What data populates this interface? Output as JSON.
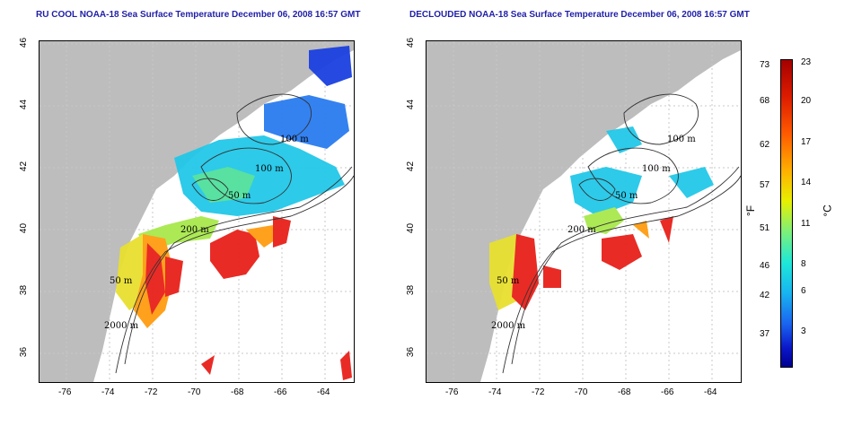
{
  "titles": {
    "left": "RU COOL NOAA-18 Sea Surface Temperature December 06, 2008 16:57 GMT",
    "right": "DECLOUDED NOAA-18 Sea Surface Temperature December 06, 2008 16:57 GMT"
  },
  "x_ticks": [
    "-76",
    "-74",
    "-72",
    "-70",
    "-68",
    "-66",
    "-64"
  ],
  "y_ticks": [
    "46",
    "44",
    "42",
    "40",
    "38",
    "36"
  ],
  "contour_labels": {
    "left": [
      "100 m",
      "100 m",
      "50 m",
      "200 m",
      "50 m",
      "2000 m"
    ],
    "right": [
      "100 m",
      "100 m",
      "50 m",
      "200 m",
      "50 m",
      "2000 m"
    ]
  },
  "colorbar": {
    "fahrenheit_ticks": [
      "73",
      "68",
      "62",
      "57",
      "51",
      "46",
      "42",
      "37"
    ],
    "celsius_ticks": [
      "23",
      "20",
      "17",
      "14",
      "11",
      "8",
      "6",
      "3"
    ],
    "unit_f": "°F",
    "unit_c": "°C"
  },
  "colors": {
    "land": "#bdbdbd",
    "title": "#1f1fa8",
    "warm": "#e8201a",
    "cool": "#2a7cf0"
  }
}
